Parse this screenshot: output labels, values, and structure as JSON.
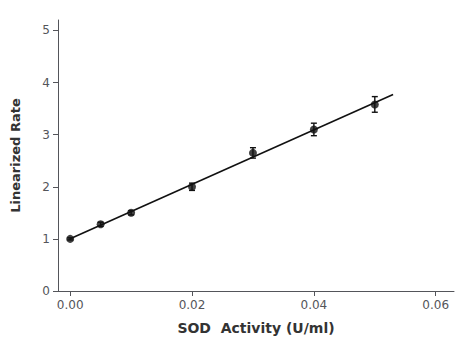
{
  "chart_data": {
    "type": "scatter",
    "xlabel": "SOD  Activity (U/ml)",
    "ylabel": "Linearized Rate",
    "xlim": [
      -0.002,
      0.063
    ],
    "ylim": [
      0.0,
      5.2
    ],
    "xticks": [
      {
        "value": 0.0,
        "label": "0.00"
      },
      {
        "value": 0.02,
        "label": "0.02"
      },
      {
        "value": 0.04,
        "label": "0.04"
      },
      {
        "value": 0.06,
        "label": "0.06"
      }
    ],
    "yticks": [
      0,
      1,
      2,
      3,
      4,
      5
    ],
    "grid": false,
    "series": [
      {
        "type": "scatter",
        "color": "#111111",
        "marker": "circle",
        "x": [
          0.0,
          0.005,
          0.01,
          0.02,
          0.03,
          0.04,
          0.05
        ],
        "values": [
          1.0,
          1.28,
          1.5,
          2.0,
          2.65,
          3.1,
          3.58
        ],
        "yerr": [
          0.02,
          0.04,
          0.04,
          0.07,
          0.1,
          0.12,
          0.15
        ]
      },
      {
        "type": "line",
        "color": "#111111",
        "line_style": "solid",
        "x": [
          0.0,
          0.053
        ],
        "values": [
          1.00193,
          3.77041
        ]
      }
    ]
  }
}
